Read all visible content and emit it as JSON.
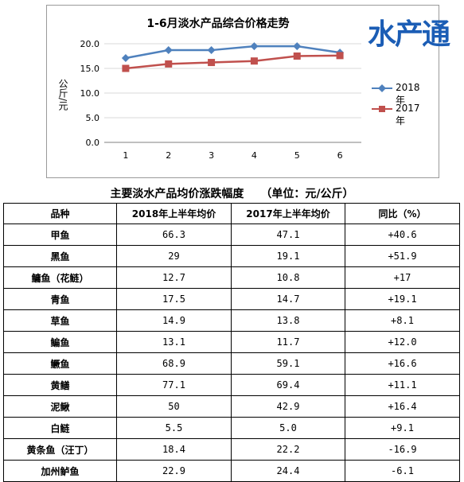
{
  "logo_text": "水产通",
  "colors": {
    "series_2018": "#4f81bd",
    "series_2017": "#c0504d",
    "logo": "#1b5db5"
  },
  "chart_data": {
    "type": "line",
    "title": "1-6月淡水产品综合价格走势",
    "ylabel": "公斤/元",
    "xlabel": "",
    "x": [
      "1",
      "2",
      "3",
      "4",
      "5",
      "6"
    ],
    "ylim": [
      0,
      20
    ],
    "yticks": [
      "0.0",
      "5.0",
      "10.0",
      "15.0",
      "20.0"
    ],
    "grid": true,
    "legend_position": "right",
    "series": [
      {
        "name": "2018年",
        "marker": "diamond",
        "values": [
          17.1,
          18.7,
          18.7,
          19.5,
          19.5,
          18.2
        ]
      },
      {
        "name": "2017年",
        "marker": "square",
        "values": [
          15.0,
          15.9,
          16.2,
          16.5,
          17.5,
          17.6
        ]
      }
    ]
  },
  "table": {
    "title": "主要淡水产品均价涨跌幅度　　（单位：元/公斤）",
    "headers": [
      "品种",
      "2018年上半年均价",
      "2017年上半年均价",
      "同比（%）"
    ],
    "rows": [
      [
        "甲鱼",
        "66.3",
        "47.1",
        "+40.6"
      ],
      [
        "黑鱼",
        "29",
        "19.1",
        "+51.9"
      ],
      [
        "鳙鱼（花鲢）",
        "12.7",
        "10.8",
        "+17"
      ],
      [
        "青鱼",
        "17.5",
        "14.7",
        "+19.1"
      ],
      [
        "草鱼",
        "14.9",
        "13.8",
        "+8.1"
      ],
      [
        "鳊鱼",
        "13.1",
        "11.7",
        "+12.0"
      ],
      [
        "鳜鱼",
        "68.9",
        "59.1",
        "+16.6"
      ],
      [
        "黄鳝",
        "77.1",
        "69.4",
        "+11.1"
      ],
      [
        "泥鳅",
        "50",
        "42.9",
        "+16.4"
      ],
      [
        "白鲢",
        "5.5",
        "5.0",
        "+9.1"
      ],
      [
        "黄条鱼（汪丁）",
        "18.4",
        "22.2",
        "-16.9"
      ],
      [
        "加州鲈鱼",
        "22.9",
        "24.4",
        "-6.1"
      ]
    ]
  }
}
